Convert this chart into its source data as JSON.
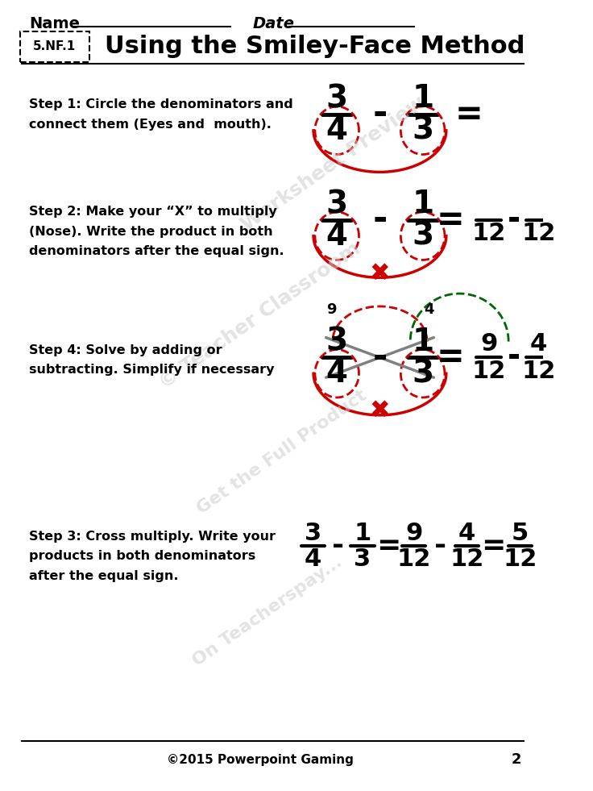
{
  "title": "Using the Smiley-Face Method",
  "standard": "5.NF.1",
  "name_label": "Name",
  "date_label": "Date",
  "bg_color": "#ffffff",
  "text_color": "#000000",
  "red_color": "#cc0000",
  "green_color": "#006600",
  "footer": "©2015 Powerpoint Gaming",
  "page_num": "2",
  "step1_text": "Step 1: Circle the denominators and\nconnect them (Eyes and  mouth).",
  "step2_text": "Step 2: Make your “X” to multiply\n(Nose). Write the product in both\ndenominators after the equal sign.",
  "step4_text": "Step 4: Solve by adding or\nsubtracting. Simplify if necessary",
  "step3_text": "Step 3: Cross multiply. Write your\nproducts in both denominators\nafter the equal sign.",
  "watermarks": [
    [
      "Worksheet Preview",
      4.5,
      7.8,
      18,
      35
    ],
    [
      "© Teacher Classroom",
      3.5,
      5.9,
      18,
      35
    ],
    [
      "Get the Full Product",
      3.8,
      4.2,
      16,
      35
    ],
    [
      "On Teacherspay...",
      3.6,
      2.2,
      16,
      35
    ]
  ]
}
